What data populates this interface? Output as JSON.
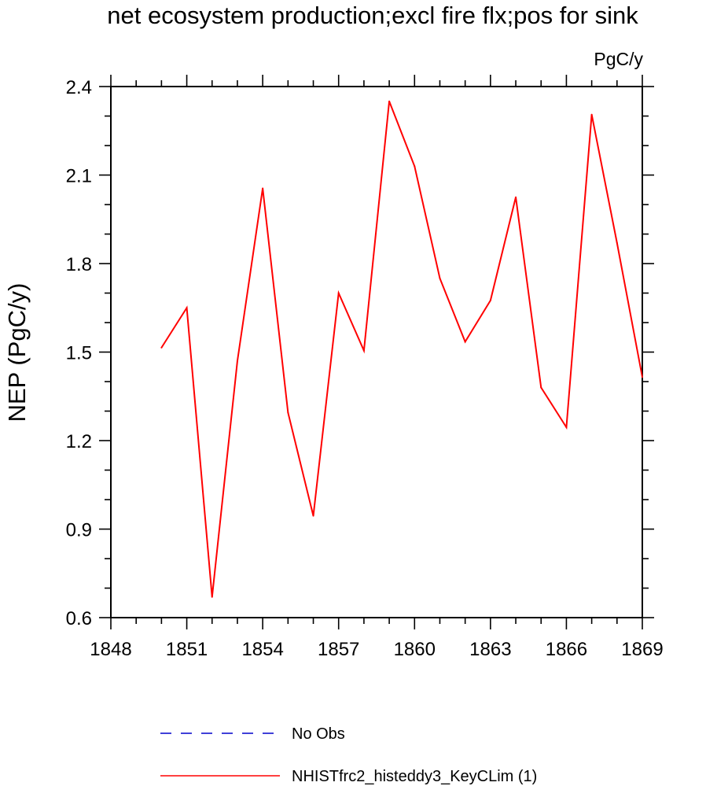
{
  "chart_data": {
    "type": "line",
    "title": "net ecosystem production;excl fire flx;pos for sink",
    "units": "PgC/y",
    "xlabel": "",
    "ylabel": "NEP  (PgC/y)",
    "xlim": [
      1848,
      1869
    ],
    "ylim": [
      0.6,
      2.4
    ],
    "x_major_ticks": [
      1848,
      1851,
      1854,
      1857,
      1860,
      1863,
      1866,
      1869
    ],
    "x_tick_labels": [
      "1848",
      "1851",
      "1854",
      "1857",
      "1860",
      "1863",
      "1866",
      "1869"
    ],
    "x_minor_step": 1,
    "y_major_ticks": [
      0.6,
      0.9,
      1.2,
      1.5,
      1.8,
      2.1,
      2.4
    ],
    "y_tick_labels": [
      "0.6",
      "0.9",
      "1.2",
      "1.5",
      "1.8",
      "2.1",
      "2.4"
    ],
    "y_minor_step": 0.1,
    "grid": false,
    "series": [
      {
        "name": "NHISTfrc2_histeddy3_KeyCLim (1)",
        "color": "#ff0000",
        "style": "solid",
        "x": [
          1850,
          1851,
          1852,
          1853,
          1854,
          1855,
          1856,
          1857,
          1858,
          1859,
          1860,
          1861,
          1862,
          1863,
          1864,
          1865,
          1866,
          1867,
          1868,
          1869
        ],
        "values": [
          1.515,
          1.65,
          0.67,
          1.47,
          2.055,
          1.295,
          0.945,
          1.7,
          1.505,
          2.35,
          2.13,
          1.75,
          1.535,
          1.675,
          2.025,
          1.38,
          1.245,
          2.305,
          1.87,
          1.415
        ]
      }
    ],
    "legend": {
      "placement": "bottom-center",
      "entries": [
        {
          "label": "No Obs",
          "color": "#0000cc",
          "style": "dashed"
        },
        {
          "label": "NHISTfrc2_histeddy3_KeyCLim (1)",
          "color": "#ff0000",
          "style": "solid"
        }
      ]
    }
  }
}
